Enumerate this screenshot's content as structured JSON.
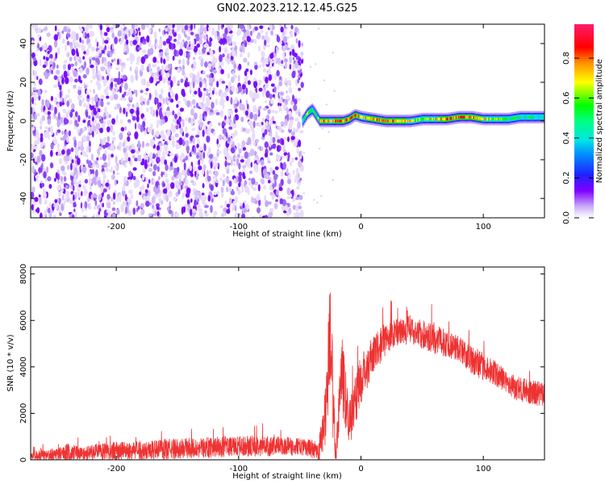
{
  "title": "GN02.2023.212.12.45.G25",
  "chart_data": [
    {
      "type": "heatmap",
      "xlabel": "Height of straight line (km)",
      "ylabel": "Frequency (Hz)",
      "xlim": [
        -270,
        150
      ],
      "ylim": [
        -50,
        50
      ],
      "xticks": [
        -200,
        -100,
        0,
        100
      ],
      "yticks": [
        -40,
        -20,
        0,
        20,
        40
      ],
      "noise_region_x": [
        -270,
        -48
      ],
      "signal_track": {
        "x": [
          -48,
          -44,
          -40,
          -37,
          -34,
          -30,
          -25,
          -20,
          -15,
          -10,
          -5,
          0,
          10,
          20,
          30,
          40,
          50,
          60,
          70,
          80,
          90,
          100,
          110,
          120,
          130,
          140,
          150
        ],
        "freq": [
          0,
          4,
          6,
          3,
          0,
          0,
          0,
          0,
          0,
          1,
          3,
          2,
          1,
          0,
          0,
          0,
          1,
          1,
          1,
          2,
          2,
          1,
          1,
          1,
          2,
          2,
          2
        ],
        "amp": [
          0.4,
          0.6,
          0.5,
          0.55,
          0.75,
          0.9,
          0.7,
          0.9,
          0.85,
          0.8,
          0.95,
          0.7,
          0.85,
          0.9,
          0.8,
          0.75,
          0.6,
          0.7,
          0.9,
          0.95,
          0.85,
          0.75,
          0.6,
          0.5,
          0.45,
          0.45,
          0.4
        ]
      },
      "colorbar": {
        "label": "Normalized spectral amplitude",
        "ticks": [
          "0.0",
          "0.2",
          "0.4",
          "0.6",
          "0.8"
        ],
        "range": [
          0,
          0.97
        ]
      },
      "colors": [
        "#ffffff",
        "#d8c8f8",
        "#8000ff",
        "#0000ff",
        "#00e5e5",
        "#00ff00",
        "#ffff00",
        "#ff8000",
        "#ff0000",
        "#ff1b6b"
      ]
    },
    {
      "type": "line",
      "xlabel": "Height of straight line (km)",
      "ylabel": "SNR (10 * v/v)",
      "xlim": [
        -270,
        150
      ],
      "ylim": [
        0,
        8300
      ],
      "xticks": [
        -200,
        -100,
        0,
        100
      ],
      "yticks": [
        0,
        2000,
        4000,
        6000,
        8000
      ],
      "series": [
        {
          "color": "#ee3333",
          "x": [
            -270,
            -250,
            -240,
            -230,
            -220,
            -200,
            -180,
            -160,
            -140,
            -120,
            -100,
            -80,
            -60,
            -45,
            -35,
            -30,
            -27,
            -25,
            -23,
            -21,
            -20,
            -18,
            -15,
            -12,
            -10,
            -5,
            0,
            10,
            20,
            30,
            40,
            50,
            60,
            70,
            80,
            90,
            100,
            110,
            120,
            130,
            140,
            150
          ],
          "mean": [
            150,
            200,
            300,
            250,
            300,
            380,
            400,
            450,
            500,
            550,
            580,
            600,
            580,
            550,
            400,
            1500,
            3500,
            6000,
            2500,
            500,
            300,
            2500,
            3500,
            2500,
            1500,
            2500,
            3500,
            4500,
            5200,
            5500,
            5600,
            5400,
            5200,
            5000,
            4800,
            4300,
            4000,
            3700,
            3300,
            3000,
            2900,
            2800
          ],
          "spread": [
            250,
            300,
            450,
            350,
            400,
            450,
            450,
            500,
            500,
            500,
            500,
            500,
            450,
            400,
            500,
            1500,
            2500,
            2500,
            2000,
            800,
            600,
            1800,
            1800,
            1500,
            1200,
            1200,
            1200,
            900,
            800,
            700,
            700,
            700,
            700,
            650,
            650,
            650,
            650,
            600,
            600,
            600,
            600,
            600
          ]
        }
      ]
    }
  ]
}
